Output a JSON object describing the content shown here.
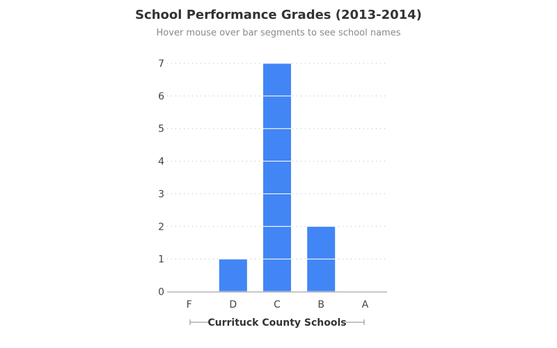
{
  "chart_data": {
    "type": "bar",
    "title": "School Performance Grades (2013-2014)",
    "subtitle": "Hover mouse over bar segments to see school names",
    "xlabel": "Currituck County Schools",
    "ylabel": "",
    "categories": [
      "F",
      "D",
      "C",
      "B",
      "A"
    ],
    "values": [
      0,
      1,
      7,
      2,
      0
    ],
    "ylim": [
      0,
      7
    ],
    "yticks": [
      0,
      1,
      2,
      3,
      4,
      5,
      6,
      7
    ],
    "grid": true,
    "stacked_segments": "one segment per school",
    "colors": {
      "bar": "#4285f4"
    }
  }
}
